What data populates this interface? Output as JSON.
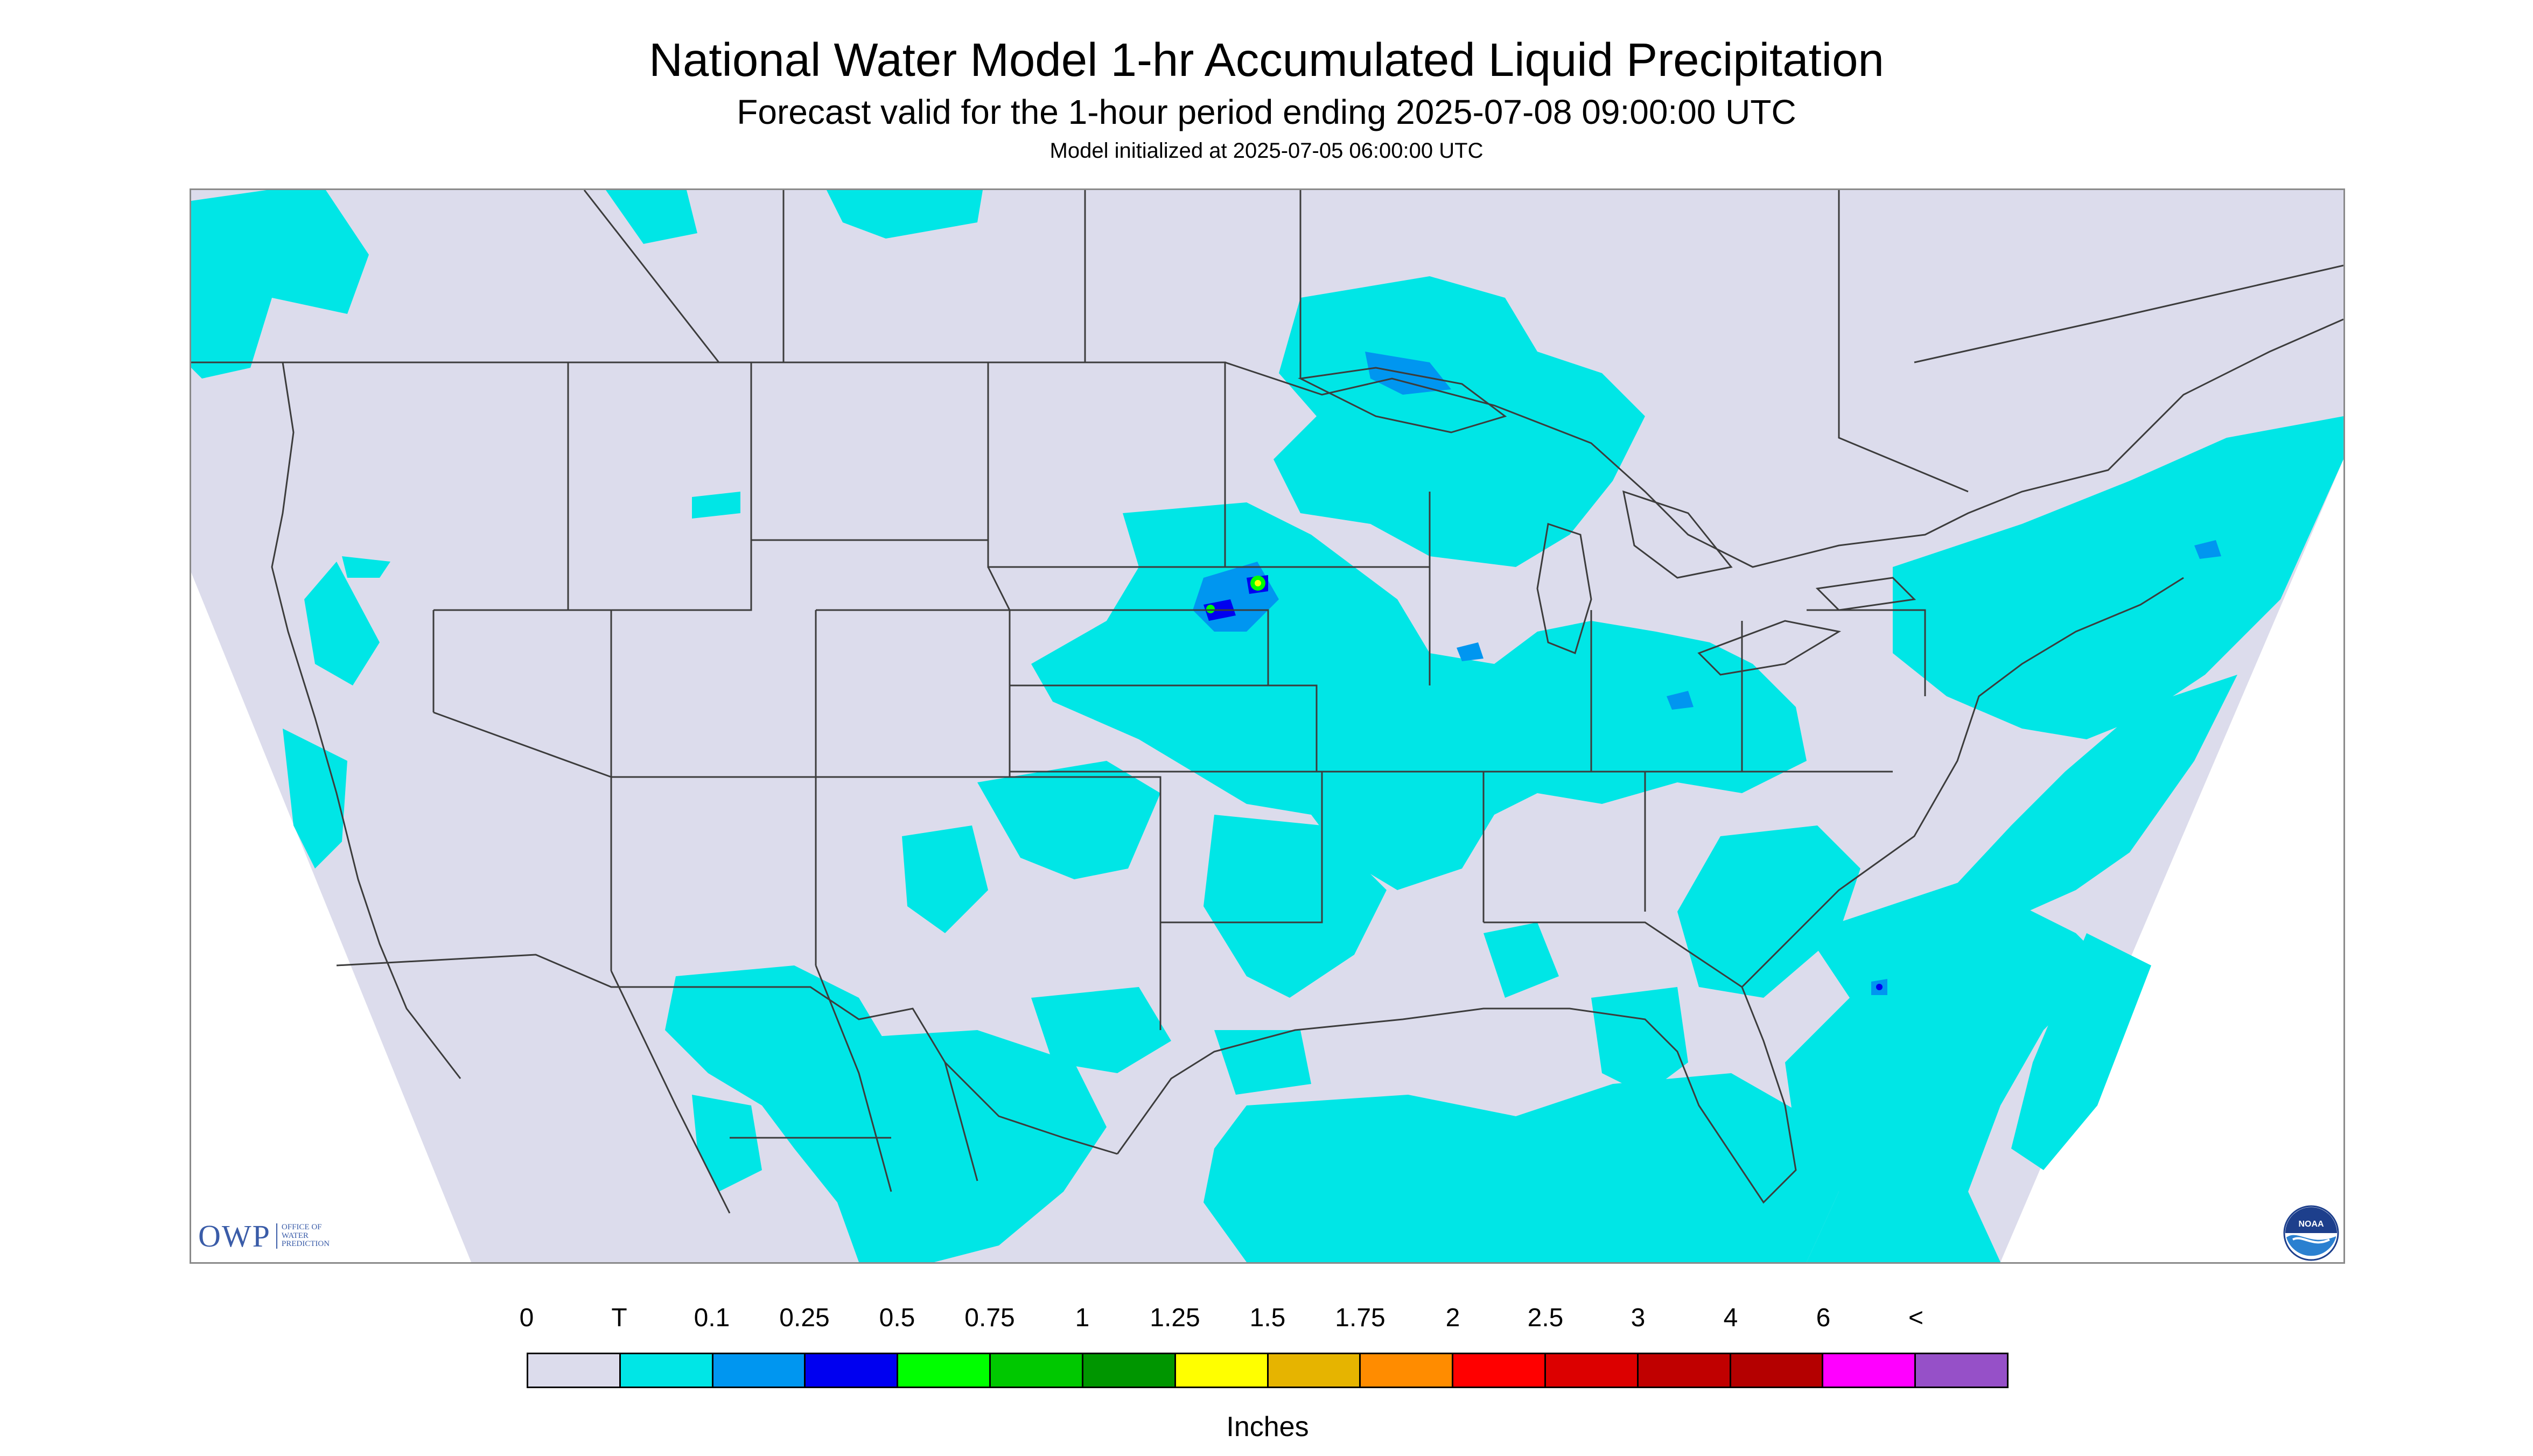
{
  "title": "National Water Model 1-hr Accumulated Liquid Precipitation",
  "subtitle": "Forecast valid for the 1-hour period ending 2025-07-08 09:00:00 UTC",
  "init": "Model initialized at 2025-07-05 06:00:00 UTC",
  "logo_owp": {
    "text": "OWP",
    "sub_lines": [
      "OFFICE OF",
      "WATER",
      "PREDICTION"
    ]
  },
  "logo_noaa": {
    "text": "NOAA"
  },
  "legend": {
    "ticks": [
      "0",
      "T",
      "0.1",
      "0.25",
      "0.5",
      "0.75",
      "1",
      "1.25",
      "1.5",
      "1.75",
      "2",
      "2.5",
      "3",
      "4",
      "6",
      "<"
    ],
    "colors": [
      "#dcdcec",
      "#00e6e6",
      "#0096f0",
      "#0000f0",
      "#00ff00",
      "#00c800",
      "#009600",
      "#ffff00",
      "#e6b400",
      "#ff8c00",
      "#ff0000",
      "#dc0000",
      "#c00000",
      "#b40000",
      "#ff00ff",
      "#9650c8"
    ],
    "units": "Inches"
  },
  "map_colors": {
    "background": "#dcdcec",
    "trace": "#00e6e6",
    "light": "#0096f0",
    "medium": "#0000f0",
    "heavy": "#00ff00",
    "peak": "#ffff00",
    "border": "#3c3c3c"
  }
}
